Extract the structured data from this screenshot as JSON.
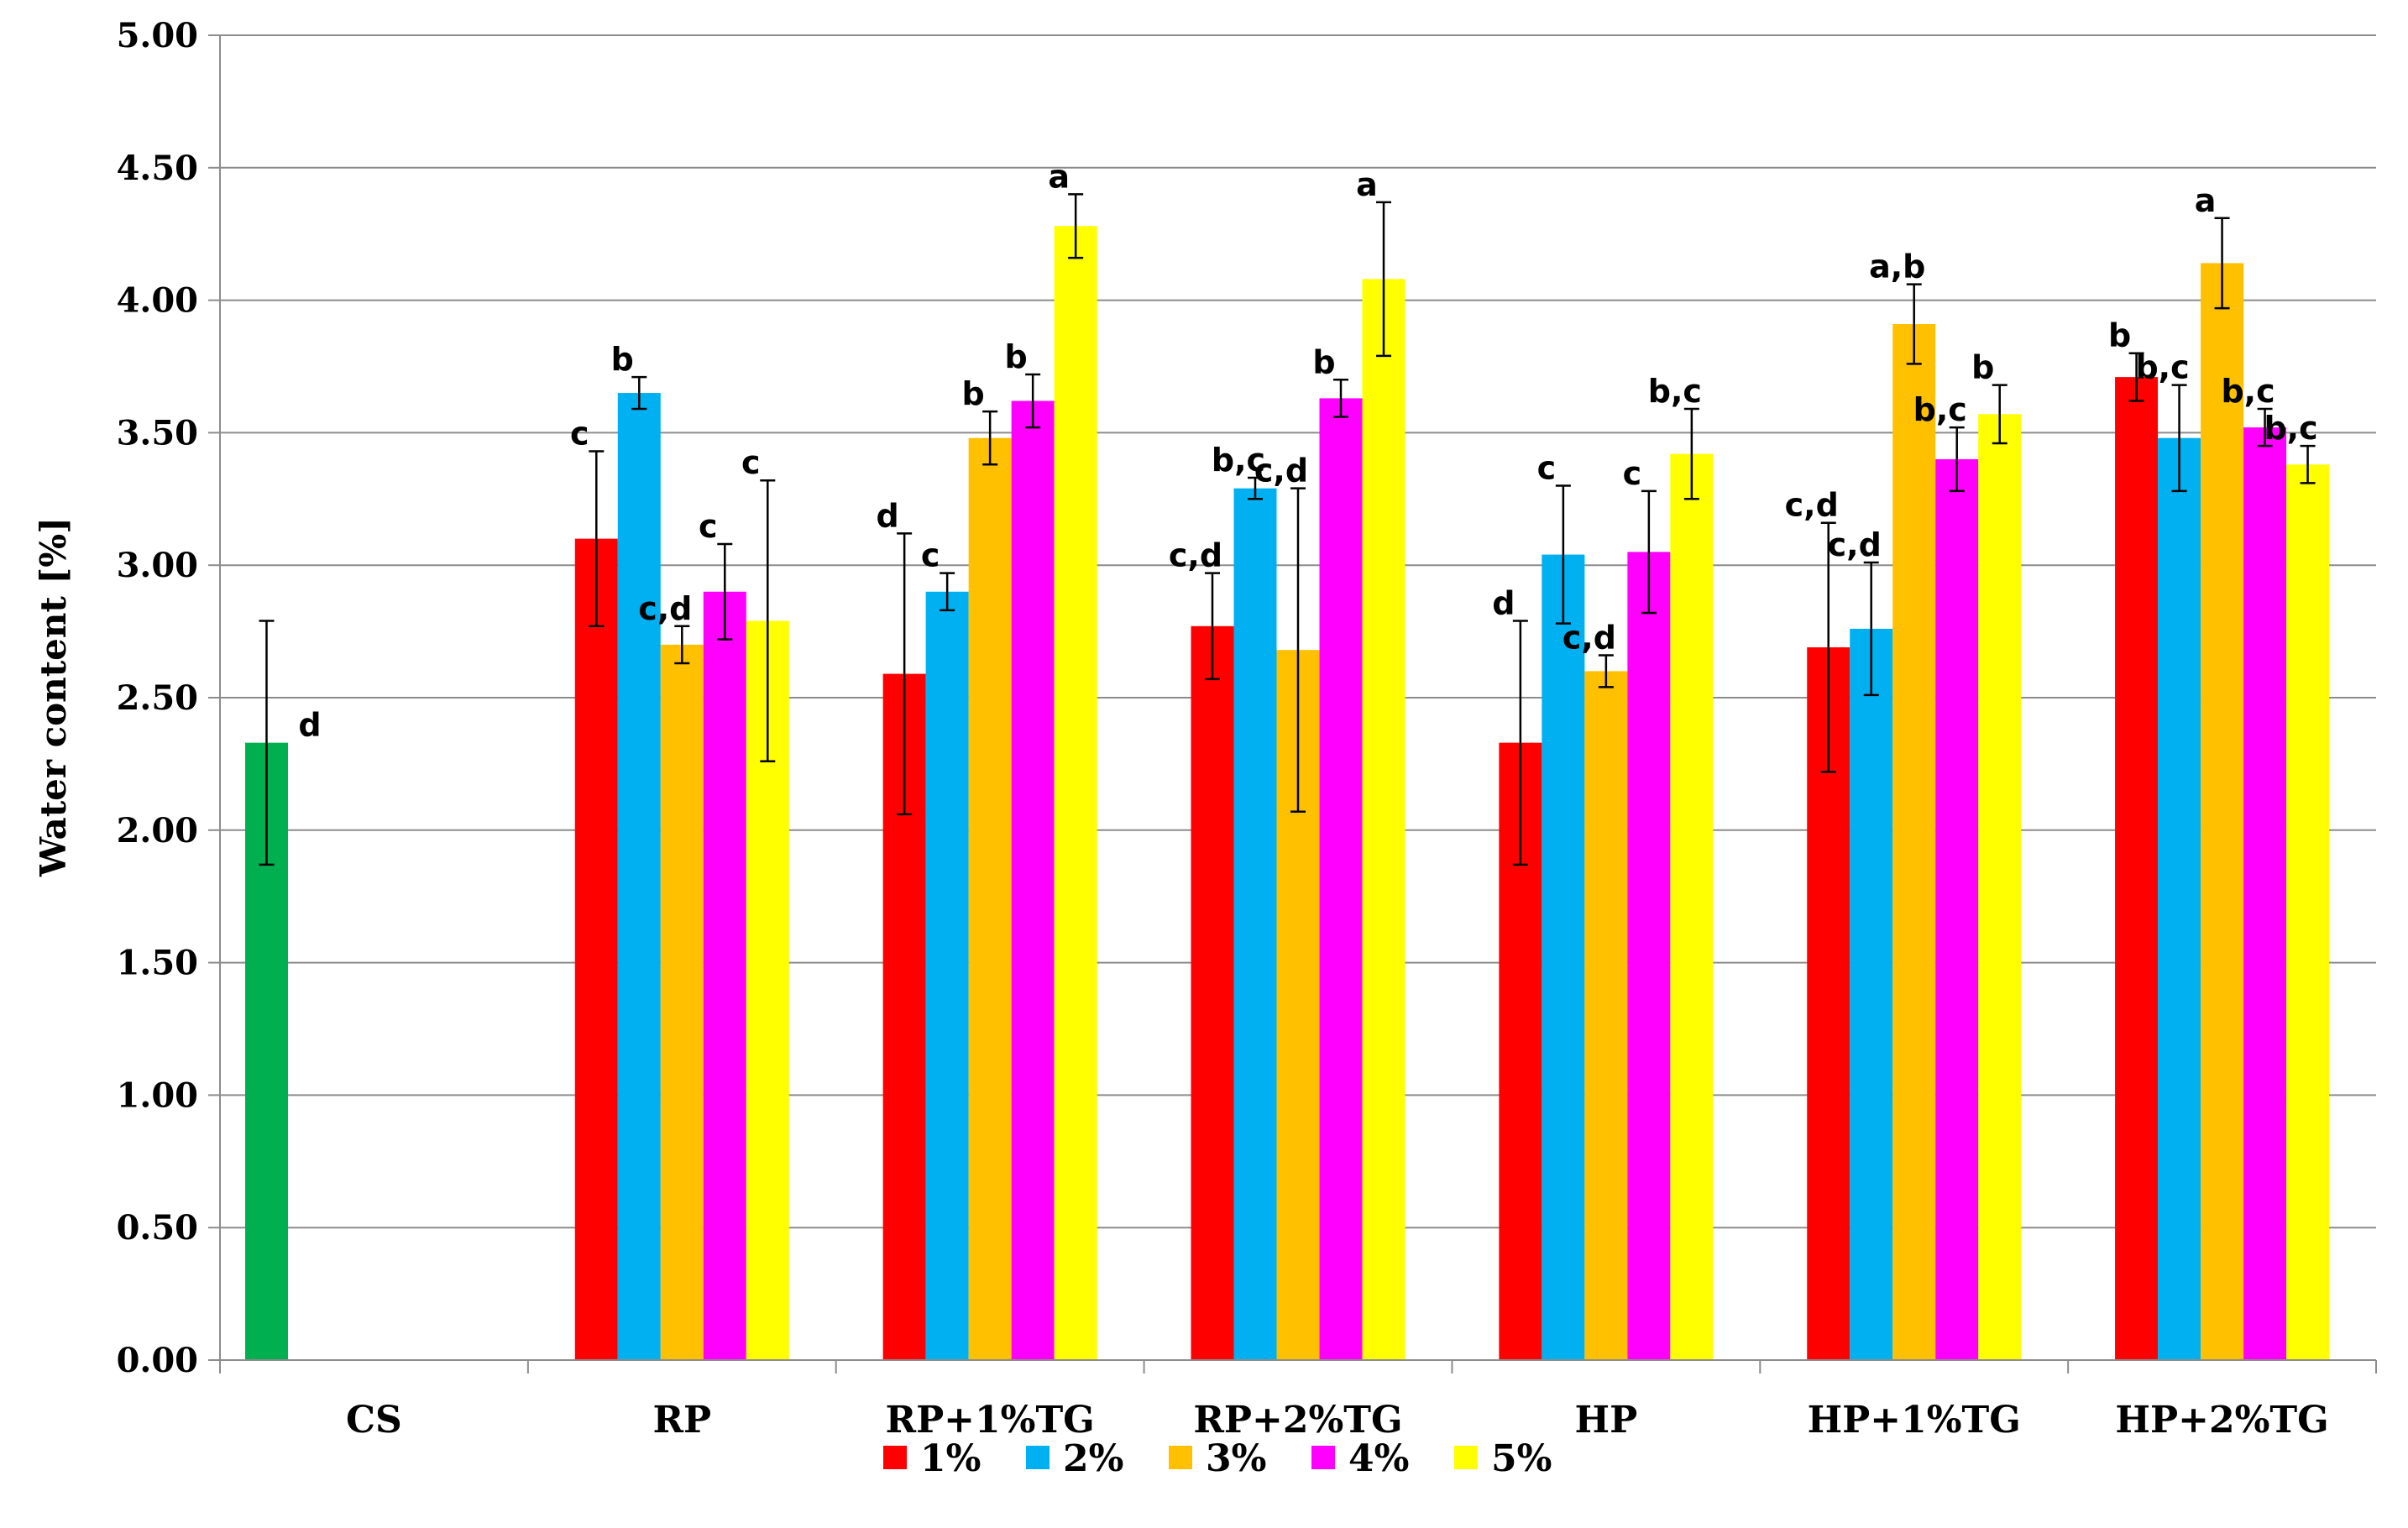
{
  "chart_data": {
    "type": "bar",
    "title": "",
    "xlabel": "",
    "ylabel": "Water content [%]",
    "ylim": [
      0,
      5
    ],
    "yticks": [
      "0.00",
      "0.50",
      "1.00",
      "1.50",
      "2.00",
      "2.50",
      "3.00",
      "3.50",
      "4.00",
      "4.50",
      "5.00"
    ],
    "grid": true,
    "legend_position": "bottom",
    "categories": [
      "CS",
      "RP",
      "RP+1%TG",
      "RP+2%TG",
      "HP",
      "HP+1%TG",
      "HP+2%TG"
    ],
    "control": {
      "category": "CS",
      "value": 2.33,
      "error": 0.46,
      "label": "d",
      "color": "#00b050"
    },
    "series": [
      {
        "name": "1%",
        "color": "#ff0000",
        "values": [
          null,
          3.1,
          2.59,
          2.77,
          2.33,
          2.69,
          3.71
        ],
        "errors": [
          null,
          0.33,
          0.53,
          0.2,
          0.46,
          0.47,
          0.09
        ],
        "labels": [
          null,
          "c",
          "d",
          "c,d",
          "d",
          "c,d",
          "b"
        ]
      },
      {
        "name": "2%",
        "color": "#00b0f0",
        "values": [
          null,
          3.65,
          2.9,
          3.29,
          3.04,
          2.76,
          3.48
        ],
        "errors": [
          null,
          0.06,
          0.07,
          0.04,
          0.26,
          0.25,
          0.2
        ],
        "labels": [
          null,
          "b",
          "c",
          "b,c",
          "c",
          "c,d",
          "b,c"
        ]
      },
      {
        "name": "3%",
        "color": "#ffc000",
        "values": [
          null,
          2.7,
          3.48,
          2.68,
          2.6,
          3.91,
          4.14
        ],
        "errors": [
          null,
          0.07,
          0.1,
          0.61,
          0.06,
          0.15,
          0.17
        ],
        "labels": [
          null,
          "c,d",
          "b",
          "c,d",
          "c,d",
          "a,b",
          "a"
        ]
      },
      {
        "name": "4%",
        "color": "#ff00ff",
        "values": [
          null,
          2.9,
          3.62,
          3.63,
          3.05,
          3.4,
          3.52
        ],
        "errors": [
          null,
          0.18,
          0.1,
          0.07,
          0.23,
          0.12,
          0.07
        ],
        "labels": [
          null,
          "c",
          "b",
          "b",
          "c",
          "b,c",
          "b,c"
        ]
      },
      {
        "name": "5%",
        "color": "#ffff00",
        "values": [
          null,
          2.79,
          4.28,
          4.08,
          3.42,
          3.57,
          3.38
        ],
        "errors": [
          null,
          0.53,
          0.12,
          0.29,
          0.17,
          0.11,
          0.07
        ],
        "labels": [
          null,
          "c",
          "a",
          "a",
          "b,c",
          "b",
          "b,c"
        ]
      }
    ]
  }
}
